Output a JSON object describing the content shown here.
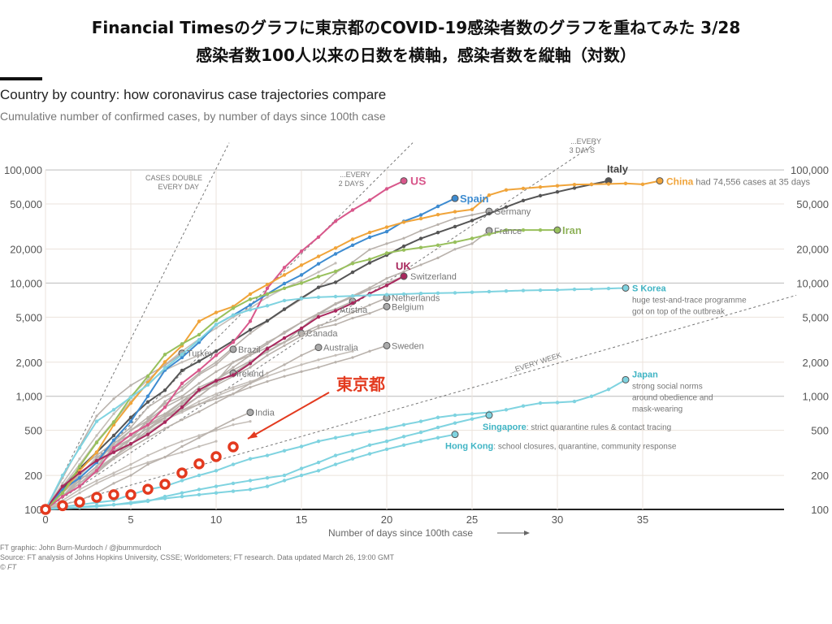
{
  "slide": {
    "title_line1": "Financial Timesのグラフに東京都のCOVID-19感染者数のグラフを重ねてみた 3/28",
    "title_line2": "感染者数100人以来の日数を横軸，感染者数を縦軸（対数）"
  },
  "chart_data": {
    "type": "line",
    "title": "Country by country: how coronavirus case trajectories compare",
    "subtitle": "Cumulative number of confirmed cases, by number of days since 100th case",
    "xlabel": "Number of days since 100th case",
    "ylabel": "",
    "xlim": [
      0,
      44
    ],
    "ylim": [
      100,
      100000
    ],
    "yscale": "log",
    "x_ticks": [
      0,
      5,
      10,
      15,
      20,
      25,
      30,
      35
    ],
    "y_ticks": [
      100,
      200,
      500,
      1000,
      2000,
      5000,
      10000,
      20000,
      50000,
      100000
    ],
    "y_tick_labels": [
      "100",
      "200",
      "500",
      "1,000",
      "2,000",
      "5,000",
      "10,000",
      "20,000",
      "50,000",
      "100,000"
    ],
    "grid": true,
    "guides": [
      {
        "label1": "CASES DOUBLE",
        "label2": "EVERY DAY",
        "doubling_days": 1
      },
      {
        "label1": "...EVERY",
        "label2": "2 DAYS",
        "doubling_days": 2
      },
      {
        "label1": "...EVERY",
        "label2": "3 DAYS",
        "doubling_days": 3
      },
      {
        "label1": "...EVERY WEEK",
        "label2": "",
        "doubling_days": 7
      }
    ],
    "series": [
      {
        "name": "other-1",
        "label": "",
        "color": "#c4beb8",
        "values": [
          100,
          160,
          250,
          400,
          600,
          900,
          1300,
          1700,
          2000,
          2300
        ]
      },
      {
        "name": "other-2",
        "label": "",
        "color": "#c4beb8",
        "values": [
          100,
          140,
          190,
          260,
          330,
          420,
          520,
          620,
          720,
          850,
          1000,
          1150,
          1300,
          1500,
          1700,
          1900,
          2100,
          2300,
          2500
        ]
      },
      {
        "name": "other-3",
        "label": "",
        "color": "#c4beb8",
        "values": [
          100,
          120,
          150,
          180,
          210,
          250,
          300,
          350,
          400,
          450,
          500,
          560,
          600
        ]
      },
      {
        "name": "other-4",
        "label": "",
        "color": "#c4beb8",
        "values": [
          100,
          130,
          170,
          230,
          290,
          380,
          480,
          600,
          750,
          900,
          1050,
          1200,
          1350,
          1500
        ]
      },
      {
        "name": "other-5",
        "label": "",
        "color": "#c4beb8",
        "values": [
          100,
          115,
          140,
          170,
          200,
          230,
          260,
          290,
          320,
          360,
          400
        ]
      },
      {
        "name": "other-6",
        "label": "",
        "color": "#c4beb8",
        "values": [
          100,
          170,
          280,
          450,
          700,
          1000,
          1400,
          1900,
          2500,
          3200,
          4000,
          5000,
          6000,
          7500,
          9000,
          10500,
          12500,
          15000
        ]
      },
      {
        "name": "Sweden",
        "label": "Sweden",
        "color": "#b9b2ac",
        "values": [
          100,
          140,
          200,
          280,
          360,
          450,
          550,
          650,
          750,
          850,
          950,
          1050,
          1200,
          1350,
          1500,
          1650,
          1800,
          2000,
          2200,
          2500,
          2800
        ]
      },
      {
        "name": "Australia",
        "label": "Australia",
        "color": "#b9b2ac",
        "values": [
          100,
          130,
          170,
          220,
          280,
          350,
          430,
          520,
          620,
          730,
          880,
          1050,
          1300,
          1600,
          1900,
          2300,
          2700
        ]
      },
      {
        "name": "Canada",
        "label": "Canada",
        "color": "#b9b2ac",
        "values": [
          100,
          130,
          180,
          240,
          320,
          420,
          520,
          650,
          800,
          1000,
          1300,
          1600,
          2000,
          2500,
          3000,
          3600
        ]
      },
      {
        "name": "Belgium",
        "label": "Belgium",
        "color": "#b9b2ac",
        "values": [
          100,
          160,
          230,
          300,
          390,
          450,
          560,
          680,
          890,
          1100,
          1250,
          1500,
          1800,
          2300,
          2800,
          3400,
          4000,
          4300,
          4900,
          5400,
          6200
        ]
      },
      {
        "name": "Netherlands",
        "label": "Netherlands",
        "color": "#b9b2ac",
        "values": [
          100,
          130,
          190,
          260,
          380,
          500,
          610,
          800,
          960,
          1130,
          1400,
          1700,
          2050,
          2460,
          3000,
          3600,
          4200,
          4700,
          5500,
          6400,
          7400
        ]
      },
      {
        "name": "Austria",
        "label": "Austria",
        "color": "#b9b2ac",
        "values": [
          100,
          130,
          180,
          240,
          360,
          500,
          650,
          860,
          1000,
          1300,
          1650,
          2000,
          2400,
          3000,
          3600,
          4500,
          5300,
          5900,
          6900
        ]
      },
      {
        "name": "Switzerland",
        "label": "Switzerland",
        "color": "#b9b2ac",
        "values": [
          100,
          150,
          210,
          270,
          330,
          380,
          500,
          650,
          850,
          1100,
          1350,
          2000,
          2300,
          2700,
          3000,
          4000,
          5300,
          6500,
          7500,
          8800,
          10000,
          11500
        ]
      },
      {
        "name": "Germany",
        "label": "Germany",
        "color": "#b9b2ac",
        "values": [
          100,
          130,
          190,
          260,
          400,
          530,
          800,
          1000,
          1200,
          1600,
          2000,
          2700,
          3600,
          4600,
          5800,
          7200,
          9200,
          12300,
          15300,
          19800,
          22300,
          24900,
          29000,
          32900,
          37300,
          40000,
          43000
        ]
      },
      {
        "name": "France",
        "label": "France",
        "color": "#b9b2ac",
        "values": [
          100,
          130,
          190,
          210,
          280,
          420,
          600,
          700,
          900,
          1200,
          1400,
          1800,
          2300,
          2900,
          3700,
          4500,
          5400,
          6600,
          7700,
          9100,
          11000,
          12600,
          14500,
          16700,
          19900,
          22300,
          29000
        ]
      },
      {
        "name": "Turkey",
        "label": "Turkey",
        "color": "#b9b2ac",
        "values": [
          100,
          190,
          360,
          670,
          950,
          1250,
          1530,
          1870,
          2400
        ]
      },
      {
        "name": "Brazil",
        "label": "Brazil",
        "color": "#b9b2ac",
        "values": [
          100,
          150,
          200,
          290,
          350,
          420,
          620,
          900,
          1130,
          1550,
          1900,
          2600
        ]
      },
      {
        "name": "Ireland",
        "label": "Ireland",
        "color": "#b9b2ac",
        "values": [
          100,
          130,
          170,
          220,
          290,
          370,
          560,
          680,
          780,
          1000,
          1300,
          1600
        ]
      },
      {
        "name": "India",
        "label": "India",
        "color": "#b9b2ac",
        "values": [
          100,
          110,
          120,
          140,
          170,
          200,
          250,
          290,
          360,
          430,
          520,
          620,
          720
        ]
      },
      {
        "name": "Italy",
        "label": "Italy",
        "color": "#555555",
        "values": [
          100,
          150,
          230,
          320,
          450,
          650,
          890,
          1130,
          1690,
          2040,
          2500,
          3090,
          3860,
          4640,
          5880,
          7380,
          9170,
          10150,
          12460,
          15110,
          17660,
          21160,
          24750,
          27980,
          31510,
          35710,
          41030,
          47020,
          53580,
          59140,
          63930,
          69180,
          74390,
          80000
        ]
      },
      {
        "name": "US",
        "label": "US",
        "color": "#d8578b",
        "values": [
          100,
          130,
          160,
          220,
          350,
          460,
          560,
          800,
          1300,
          1700,
          2300,
          3000,
          4600,
          9000,
          13700,
          19100,
          25500,
          35200,
          44200,
          54000,
          68000,
          80000
        ]
      },
      {
        "name": "Spain",
        "label": "Spain",
        "color": "#3d8bd0",
        "values": [
          100,
          150,
          190,
          260,
          410,
          600,
          1000,
          1700,
          2200,
          3000,
          4300,
          5200,
          6400,
          8000,
          9900,
          11800,
          14800,
          18100,
          21600,
          25400,
          28500,
          35100,
          40000,
          47600,
          56000
        ]
      },
      {
        "name": "China",
        "label": "China",
        "note": "had 74,556 cases at 35 days",
        "color": "#f0a43a",
        "values": [
          100,
          140,
          220,
          320,
          560,
          870,
          1320,
          2010,
          2800,
          4590,
          5500,
          6200,
          8000,
          9700,
          11800,
          14400,
          17200,
          20400,
          24400,
          28000,
          31200,
          34500,
          37100,
          40200,
          42700,
          44700,
          59800,
          66500,
          68500,
          70500,
          72400,
          74200,
          74600,
          75100,
          75900,
          74556,
          80000
        ]
      },
      {
        "name": "Iran",
        "label": "Iran",
        "color": "#98c05c",
        "values": [
          100,
          140,
          240,
          390,
          590,
          980,
          1500,
          2340,
          2900,
          3500,
          4700,
          6000,
          7200,
          8000,
          9000,
          10000,
          11400,
          12700,
          14900,
          16200,
          18400,
          19600,
          20600,
          21600,
          23000,
          24800,
          27000,
          29400,
          29400,
          29400,
          29400
        ]
      },
      {
        "name": "UK",
        "label": "UK",
        "color": "#a8285d",
        "values": [
          100,
          160,
          210,
          270,
          320,
          380,
          460,
          590,
          800,
          1140,
          1370,
          1540,
          1950,
          2630,
          3270,
          3980,
          5020,
          5680,
          6650,
          8080,
          9530,
          11500
        ]
      },
      {
        "name": "S Korea",
        "label": "S Korea",
        "note1": "huge test-and-trace programme",
        "note2": "got on top of the outbreak",
        "color": "#7fd3e0",
        "values": [
          100,
          200,
          350,
          600,
          760,
          980,
          1260,
          1770,
          2340,
          3150,
          4300,
          5200,
          5800,
          6300,
          7000,
          7300,
          7500,
          7600,
          7700,
          7800,
          7900,
          8000,
          8100,
          8150,
          8200,
          8300,
          8400,
          8500,
          8600,
          8650,
          8700,
          8800,
          8850,
          8950,
          9050
        ]
      },
      {
        "name": "Japan",
        "label": "Japan",
        "note1": "strong social norms",
        "note2": "around obedience and",
        "note3": "mask-wearing",
        "color": "#7fd3e0",
        "values": [
          100,
          105,
          110,
          115,
          120,
          135,
          150,
          160,
          180,
          200,
          220,
          250,
          280,
          300,
          330,
          360,
          400,
          430,
          460,
          490,
          520,
          560,
          600,
          650,
          680,
          700,
          720,
          760,
          820,
          870,
          880,
          900,
          1000,
          1150,
          1400
        ]
      },
      {
        "name": "Singapore",
        "label": "Singapore",
        "note": ": strict quarantine rules & contact tracing",
        "color": "#7fd3e0",
        "values": [
          100,
          102,
          105,
          108,
          110,
          113,
          118,
          130,
          140,
          150,
          160,
          170,
          180,
          190,
          200,
          230,
          260,
          300,
          330,
          370,
          400,
          440,
          480,
          530,
          580,
          630,
          680
        ]
      },
      {
        "name": "Hong Kong",
        "label": "Hong Kong",
        "note": ": school closures, quarantine, community response",
        "color": "#7fd3e0",
        "values": [
          100,
          102,
          104,
          106,
          110,
          115,
          120,
          125,
          130,
          135,
          140,
          145,
          150,
          160,
          180,
          200,
          220,
          250,
          280,
          310,
          340,
          370,
          400,
          430,
          460
        ]
      },
      {
        "name": "Tokyo",
        "label": "東京都",
        "color": "#e33a1f",
        "values": [
          100,
          108,
          116,
          128,
          135,
          135,
          151,
          167,
          210,
          253,
          293,
          357
        ]
      }
    ],
    "tokyo_callout": "東京都",
    "credit": "FT graphic: John Burn-Murdoch / @jburnmurdoch",
    "source": "Source: FT analysis of Johns Hopkins University, CSSE; Worldometers; FT research. Data updated March 26, 19:00 GMT",
    "copyright": "© FT"
  }
}
